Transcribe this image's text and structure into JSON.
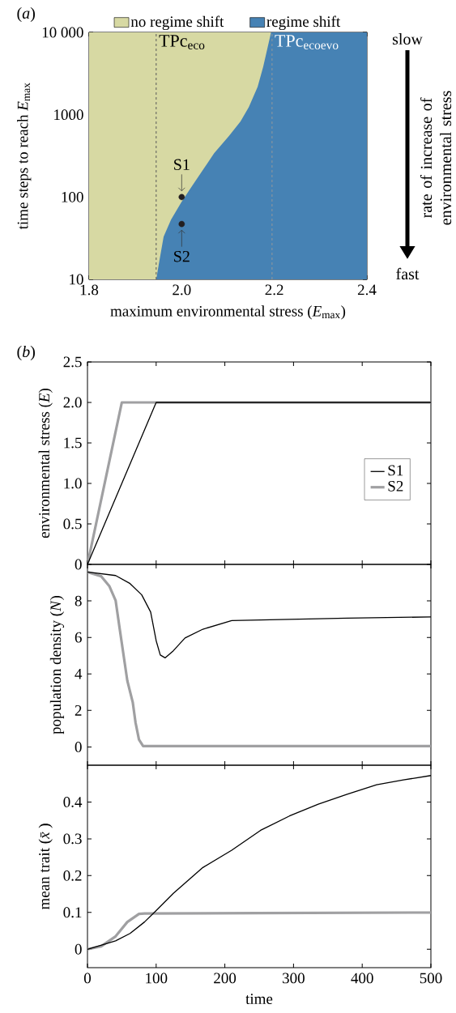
{
  "chart_data": [
    {
      "type": "area",
      "log": true,
      "x": [
        1.8,
        1.945,
        1.952,
        1.961,
        1.977,
        1.999,
        2.02,
        2.045,
        2.07,
        2.102,
        2.127,
        2.145,
        2.164,
        2.176,
        2.186,
        2.193,
        2.4
      ],
      "xlim": [
        1.8,
        2.4
      ],
      "xticks": [
        1.8,
        {
          "value": 2.0,
          "label": "2.0"
        },
        2.2,
        2.4
      ],
      "ylim": [
        10,
        10000
      ],
      "yticks": [
        10,
        100,
        1000,
        {
          "value": 10000,
          "label": "10 000"
        }
      ],
      "xlabel": "maximum environmental stress (*E*$_{max}$)",
      "ylabel": "time steps to reach *E*$_{max}$",
      "legend": "top",
      "series": [
        {
          "name": "no regime shift",
          "color": "#d7d9a3",
          "x": [
            1.8,
            2.193
          ],
          "values": [
            10000,
            10000
          ]
        },
        {
          "name": "regime shift",
          "color": "#4682b4",
          "values": [
            10,
            10,
            17,
            33,
            53,
            86,
            130,
            210,
            340,
            550,
            830,
            1240,
            2180,
            3830,
            6740,
            10000,
            10000
          ]
        },
        {
          "type": "scatter",
          "x": [
            2.0,
            2.0
          ],
          "values": [
            100,
            47
          ],
          "color": "#231f20"
        }
      ],
      "ref_lines": [
        {
          "axis": "x",
          "value": 1.945,
          "label": "TPc$_{eco}$",
          "color": "#555555",
          "line_style": "dashed"
        },
        {
          "axis": "x",
          "value": 2.195,
          "label": "TPc$_{ecoevo}$",
          "color": "#9a9a9a",
          "line_style": "dashed"
        }
      ],
      "annotations": [
        "(*a*)",
        "slow",
        "fast",
        "rate of increase of environmental stress",
        {
          "text": "S1",
          "x": 2.0,
          "y": 100
        },
        {
          "text": "S2",
          "x": 2.0,
          "y": 47
        }
      ]
    },
    {
      "type": "line",
      "xlim": [
        0,
        500
      ],
      "xticks": [
        0,
        100,
        200,
        300,
        400,
        500
      ],
      "ylim": [
        0,
        2.5
      ],
      "yticks": [
        0,
        0.5,
        {
          "value": 1,
          "label": "1.0"
        },
        1.5,
        {
          "value": 2,
          "label": "2.0"
        },
        2.5
      ],
      "ylabel": "environmental stress (*E*)",
      "legend": "right",
      "tick_labels": "y",
      "series": [
        {
          "name": "S1",
          "color": "#000000",
          "x": [
            0,
            100,
            500
          ],
          "values": [
            0,
            2,
            2
          ]
        },
        {
          "name": "S2",
          "color": "#a0a0a2",
          "x": [
            0,
            50,
            500
          ],
          "values": [
            0,
            2,
            2
          ]
        }
      ],
      "annotations": [
        "(*b*)"
      ]
    },
    {
      "type": "line",
      "xlim": [
        0,
        500
      ],
      "xticks": [
        0,
        100,
        200,
        300,
        400,
        500
      ],
      "ylim": [
        -1,
        10
      ],
      "yticks": [
        0,
        2,
        4,
        6,
        8
      ],
      "ylabel": "population density (*N*)",
      "tick_labels": "y",
      "series": [
        {
          "color": "#000000",
          "x": [
            0,
            41,
            62,
            79,
            92,
            100,
            106,
            113,
            125,
            142,
            168,
            210,
            294,
            378,
            500
          ],
          "values": [
            9.58,
            9.39,
            8.95,
            8.33,
            7.39,
            5.82,
            5.04,
            4.88,
            5.27,
            5.97,
            6.45,
            6.92,
            6.99,
            7.06,
            7.12
          ]
        },
        {
          "color": "#a0a0a2",
          "x": [
            0,
            20,
            32,
            41,
            47,
            58,
            66,
            70,
            75,
            81,
            500
          ],
          "values": [
            9.58,
            9.35,
            8.8,
            8.02,
            6.45,
            3.63,
            2.43,
            1.33,
            0.4,
            0.05,
            0.05
          ]
        }
      ]
    },
    {
      "type": "line",
      "xlim": [
        0,
        500
      ],
      "xticks": [
        0,
        100,
        200,
        300,
        400,
        500
      ],
      "ylim": [
        -0.05,
        0.5
      ],
      "yticks": [
        0,
        0.1,
        0.2,
        0.3,
        0.4
      ],
      "xlabel": "time",
      "ylabel": "mean trait (*x̄*)",
      "series": [
        {
          "color": "#000000",
          "x": [
            0,
            41,
            62,
            83,
            100,
            125,
            168,
            210,
            252,
            294,
            336,
            378,
            421,
            460,
            500
          ],
          "values": [
            0,
            0.023,
            0.043,
            0.074,
            0.105,
            0.152,
            0.222,
            0.269,
            0.323,
            0.362,
            0.394,
            0.421,
            0.447,
            0.46,
            0.472
          ]
        },
        {
          "color": "#a0a0a2",
          "x": [
            0,
            20,
            41,
            58,
            75,
            83,
            500
          ],
          "values": [
            0,
            0.008,
            0.035,
            0.074,
            0.096,
            0.097,
            0.1
          ]
        }
      ]
    }
  ]
}
